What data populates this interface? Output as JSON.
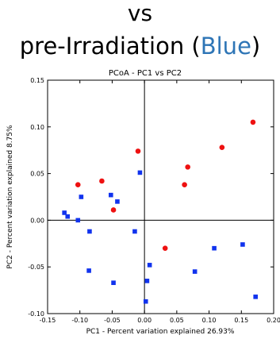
{
  "slide": {
    "line1": "vs",
    "line2_prefix": "pre-Irradiation (",
    "line2_colored": "Blue",
    "line2_suffix": ")"
  },
  "colors": {
    "title_accent": "#2e75b6",
    "red_series": "#ee1111",
    "blue_series": "#1133ee",
    "axes": "#000000"
  },
  "chart_data": {
    "type": "scatter",
    "title": "PCoA - PC1 vs PC2",
    "xlabel": "PC1 - Percent variation explained 26.93%",
    "ylabel": "PC2 - Percent variation explained 8.75%",
    "xlim": [
      -0.15,
      0.2
    ],
    "ylim": [
      -0.1,
      0.15
    ],
    "xticks": [
      "-0.15",
      "-0.10",
      "-0.05",
      "0.00",
      "0.05",
      "0.10",
      "0.15",
      "0.20"
    ],
    "yticks": [
      "-0.10",
      "-0.05",
      "0.00",
      "0.05",
      "0.10",
      "0.15"
    ],
    "grid": false,
    "reference_lines": {
      "x": 0,
      "y": 0
    },
    "series": [
      {
        "marker": "circle",
        "color": "#ee1111",
        "points": [
          [
            -0.103,
            0.038
          ],
          [
            -0.066,
            0.042
          ],
          [
            -0.048,
            0.011
          ],
          [
            -0.01,
            0.074
          ],
          [
            0.032,
            -0.03
          ],
          [
            0.062,
            0.038
          ],
          [
            0.067,
            0.057
          ],
          [
            0.12,
            0.078
          ],
          [
            0.168,
            0.105
          ]
        ]
      },
      {
        "marker": "square",
        "color": "#1133ee",
        "points": [
          [
            -0.124,
            0.008
          ],
          [
            -0.119,
            0.004
          ],
          [
            -0.103,
            0.0
          ],
          [
            -0.098,
            0.025
          ],
          [
            -0.085,
            -0.012
          ],
          [
            -0.086,
            -0.054
          ],
          [
            -0.052,
            0.027
          ],
          [
            -0.042,
            0.02
          ],
          [
            -0.048,
            -0.067
          ],
          [
            -0.015,
            -0.012
          ],
          [
            -0.007,
            0.051
          ],
          [
            0.008,
            -0.048
          ],
          [
            0.004,
            -0.065
          ],
          [
            0.002,
            -0.087
          ],
          [
            0.078,
            -0.055
          ],
          [
            0.108,
            -0.03
          ],
          [
            0.152,
            -0.026
          ],
          [
            0.172,
            -0.082
          ]
        ]
      }
    ]
  }
}
